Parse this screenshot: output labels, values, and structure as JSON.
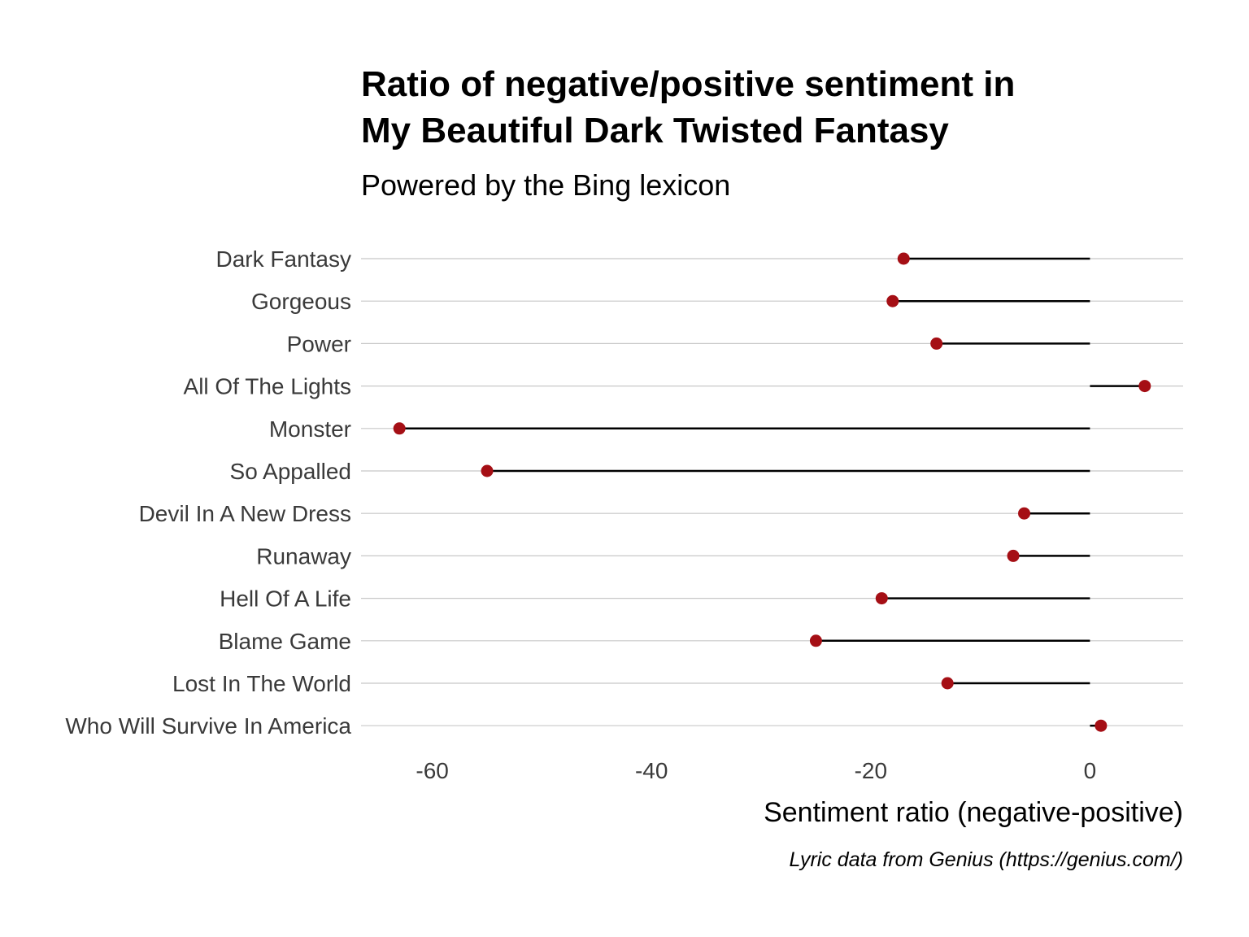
{
  "chart_data": {
    "type": "lollipop",
    "title_lines": [
      "Ratio of negative/positive sentiment in",
      "My Beautiful Dark Twisted Fantasy"
    ],
    "subtitle": "Powered by the Bing lexicon",
    "xlabel": "Sentiment ratio (negative-positive)",
    "ylabel": "",
    "caption": "Lyric data from Genius (https://genius.com/)",
    "categories": [
      "Dark Fantasy",
      "Gorgeous",
      "Power",
      "All Of The Lights",
      "Monster",
      "So Appalled",
      "Devil In A New Dress",
      "Runaway",
      "Hell Of A Life",
      "Blame Game",
      "Lost In The World",
      "Who Will Survive In America"
    ],
    "values": [
      -17,
      -18,
      -14,
      5,
      -63,
      -55,
      -6,
      -7,
      -19,
      -25,
      -13,
      1
    ],
    "xlim": [
      -66.5,
      8.5
    ],
    "xticks": [
      -60,
      -40,
      -20,
      0
    ],
    "xtick_labels": [
      "-60",
      "-40",
      "-20",
      "0"
    ],
    "grid": "horizontal-major",
    "legend": "none",
    "colors": {
      "point": "#a50f15",
      "stem": "#000000",
      "grid": "#c8c8c8"
    }
  }
}
